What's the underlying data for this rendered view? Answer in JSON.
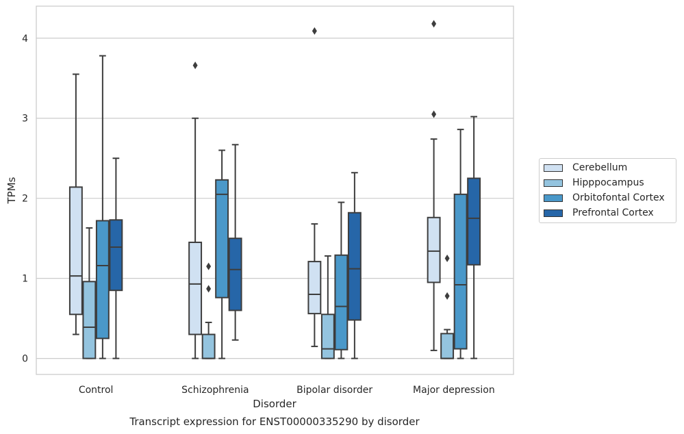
{
  "chart_data": {
    "type": "boxplot",
    "title": "Transcript expression for ENST00000335290 by disorder",
    "xlabel": "Disorder",
    "ylabel": "TPMs",
    "ylim": [
      -0.2,
      4.4
    ],
    "yticks": [
      0,
      1,
      2,
      3,
      4
    ],
    "grid": "horizontal",
    "legend_position": "right",
    "categories": [
      "Control",
      "Schizophrenia",
      "Bipolar disorder",
      "Major depression"
    ],
    "series": [
      {
        "name": "Cerebellum",
        "color": "#d0e1f2",
        "boxes": [
          {
            "whisker_low": 0.3,
            "q1": 0.55,
            "median": 1.03,
            "q3": 2.14,
            "whisker_high": 3.55,
            "outliers": []
          },
          {
            "whisker_low": 0.0,
            "q1": 0.3,
            "median": 0.93,
            "q3": 1.45,
            "whisker_high": 3.0,
            "outliers": [
              3.66
            ]
          },
          {
            "whisker_low": 0.15,
            "q1": 0.56,
            "median": 0.8,
            "q3": 1.21,
            "whisker_high": 1.68,
            "outliers": [
              4.09
            ]
          },
          {
            "whisker_low": 0.1,
            "q1": 0.95,
            "median": 1.34,
            "q3": 1.76,
            "whisker_high": 2.74,
            "outliers": [
              3.05,
              4.18
            ]
          }
        ]
      },
      {
        "name": "Hipppocampus",
        "color": "#94c4df",
        "boxes": [
          {
            "whisker_low": 0.0,
            "q1": 0.0,
            "median": 0.39,
            "q3": 0.96,
            "whisker_high": 1.63,
            "outliers": []
          },
          {
            "whisker_low": 0.0,
            "q1": 0.0,
            "median": 0.0,
            "q3": 0.3,
            "whisker_high": 0.45,
            "outliers": [
              0.87,
              1.15
            ]
          },
          {
            "whisker_low": 0.0,
            "q1": 0.0,
            "median": 0.12,
            "q3": 0.55,
            "whisker_high": 1.28,
            "outliers": []
          },
          {
            "whisker_low": 0.0,
            "q1": 0.0,
            "median": 0.0,
            "q3": 0.31,
            "whisker_high": 0.36,
            "outliers": [
              0.78,
              1.25
            ]
          }
        ]
      },
      {
        "name": "Orbitofontal Cortex",
        "color": "#4a98c9",
        "boxes": [
          {
            "whisker_low": 0.0,
            "q1": 0.25,
            "median": 1.16,
            "q3": 1.72,
            "whisker_high": 3.78,
            "outliers": []
          },
          {
            "whisker_low": 0.0,
            "q1": 0.76,
            "median": 2.05,
            "q3": 2.23,
            "whisker_high": 2.6,
            "outliers": []
          },
          {
            "whisker_low": 0.0,
            "q1": 0.11,
            "median": 0.65,
            "q3": 1.29,
            "whisker_high": 1.95,
            "outliers": []
          },
          {
            "whisker_low": 0.0,
            "q1": 0.12,
            "median": 0.92,
            "q3": 2.05,
            "whisker_high": 2.86,
            "outliers": []
          }
        ]
      },
      {
        "name": "Prefrontal Cortex",
        "color": "#2666a8",
        "boxes": [
          {
            "whisker_low": 0.0,
            "q1": 0.85,
            "median": 1.39,
            "q3": 1.73,
            "whisker_high": 2.5,
            "outliers": []
          },
          {
            "whisker_low": 0.23,
            "q1": 0.6,
            "median": 1.11,
            "q3": 1.5,
            "whisker_high": 2.67,
            "outliers": []
          },
          {
            "whisker_low": 0.0,
            "q1": 0.48,
            "median": 1.12,
            "q3": 1.82,
            "whisker_high": 2.32,
            "outliers": []
          },
          {
            "whisker_low": 0.0,
            "q1": 1.17,
            "median": 1.75,
            "q3": 2.25,
            "whisker_high": 3.02,
            "outliers": []
          }
        ]
      }
    ]
  }
}
